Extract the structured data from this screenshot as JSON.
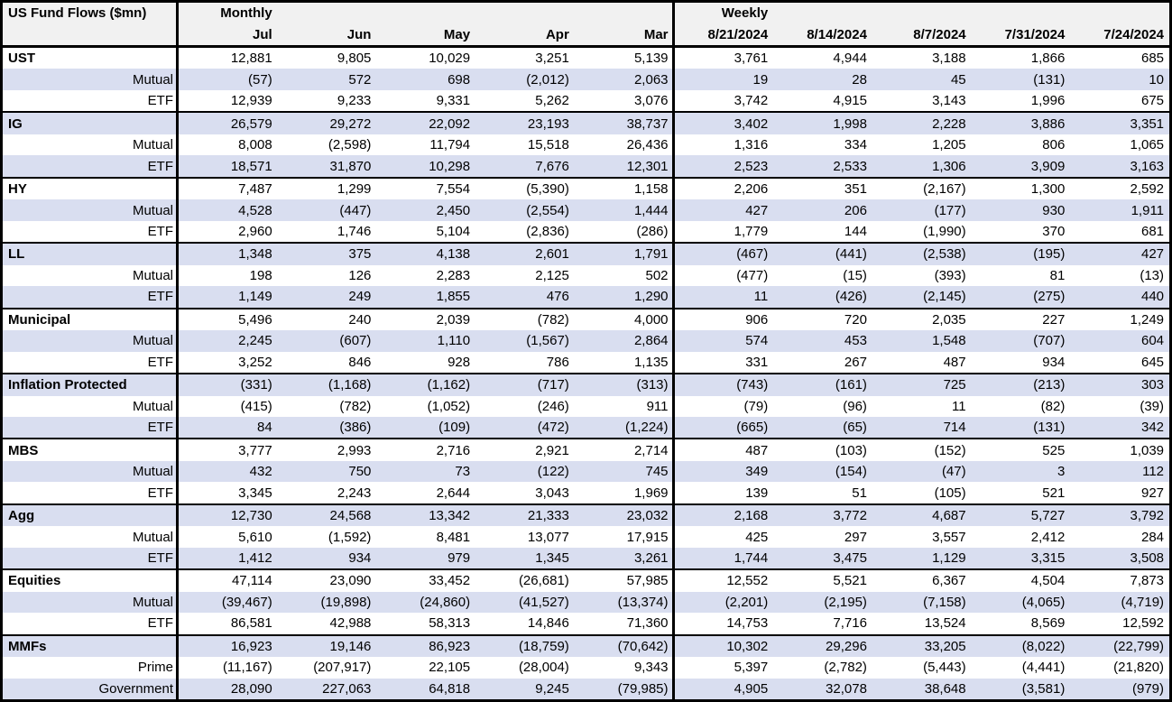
{
  "colors": {
    "row_shade": "#d9def0",
    "header_bg": "#f1f1f1",
    "border": "#000000"
  },
  "chart_data": {
    "type": "table",
    "title": "US Fund Flows ($mn)",
    "sections": [
      {
        "label": "Monthly",
        "columns": [
          "Jul",
          "Jun",
          "May",
          "Apr",
          "Mar"
        ]
      },
      {
        "label": "Weekly",
        "columns": [
          "8/21/2024",
          "8/14/2024",
          "8/7/2024",
          "7/31/2024",
          "7/24/2024"
        ]
      }
    ],
    "groups": [
      {
        "name": "UST",
        "rows": [
          {
            "label": "UST",
            "monthly": [
              "12,881",
              "9,805",
              "10,029",
              "3,251",
              "5,139"
            ],
            "weekly": [
              "3,761",
              "4,944",
              "3,188",
              "1,866",
              "685"
            ]
          },
          {
            "label": "Mutual",
            "monthly": [
              "(57)",
              "572",
              "698",
              "(2,012)",
              "2,063"
            ],
            "weekly": [
              "19",
              "28",
              "45",
              "(131)",
              "10"
            ]
          },
          {
            "label": "ETF",
            "monthly": [
              "12,939",
              "9,233",
              "9,331",
              "5,262",
              "3,076"
            ],
            "weekly": [
              "3,742",
              "4,915",
              "3,143",
              "1,996",
              "675"
            ]
          }
        ]
      },
      {
        "name": "IG",
        "rows": [
          {
            "label": "IG",
            "monthly": [
              "26,579",
              "29,272",
              "22,092",
              "23,193",
              "38,737"
            ],
            "weekly": [
              "3,402",
              "1,998",
              "2,228",
              "3,886",
              "3,351"
            ]
          },
          {
            "label": "Mutual",
            "monthly": [
              "8,008",
              "(2,598)",
              "11,794",
              "15,518",
              "26,436"
            ],
            "weekly": [
              "1,316",
              "334",
              "1,205",
              "806",
              "1,065"
            ]
          },
          {
            "label": "ETF",
            "monthly": [
              "18,571",
              "31,870",
              "10,298",
              "7,676",
              "12,301"
            ],
            "weekly": [
              "2,523",
              "2,533",
              "1,306",
              "3,909",
              "3,163"
            ]
          }
        ]
      },
      {
        "name": "HY",
        "rows": [
          {
            "label": "HY",
            "monthly": [
              "7,487",
              "1,299",
              "7,554",
              "(5,390)",
              "1,158"
            ],
            "weekly": [
              "2,206",
              "351",
              "(2,167)",
              "1,300",
              "2,592"
            ]
          },
          {
            "label": "Mutual",
            "monthly": [
              "4,528",
              "(447)",
              "2,450",
              "(2,554)",
              "1,444"
            ],
            "weekly": [
              "427",
              "206",
              "(177)",
              "930",
              "1,911"
            ]
          },
          {
            "label": "ETF",
            "monthly": [
              "2,960",
              "1,746",
              "5,104",
              "(2,836)",
              "(286)"
            ],
            "weekly": [
              "1,779",
              "144",
              "(1,990)",
              "370",
              "681"
            ]
          }
        ]
      },
      {
        "name": "LL",
        "rows": [
          {
            "label": "LL",
            "monthly": [
              "1,348",
              "375",
              "4,138",
              "2,601",
              "1,791"
            ],
            "weekly": [
              "(467)",
              "(441)",
              "(2,538)",
              "(195)",
              "427"
            ]
          },
          {
            "label": "Mutual",
            "monthly": [
              "198",
              "126",
              "2,283",
              "2,125",
              "502"
            ],
            "weekly": [
              "(477)",
              "(15)",
              "(393)",
              "81",
              "(13)"
            ]
          },
          {
            "label": "ETF",
            "monthly": [
              "1,149",
              "249",
              "1,855",
              "476",
              "1,290"
            ],
            "weekly": [
              "11",
              "(426)",
              "(2,145)",
              "(275)",
              "440"
            ]
          }
        ]
      },
      {
        "name": "Municipal",
        "rows": [
          {
            "label": "Municipal",
            "monthly": [
              "5,496",
              "240",
              "2,039",
              "(782)",
              "4,000"
            ],
            "weekly": [
              "906",
              "720",
              "2,035",
              "227",
              "1,249"
            ]
          },
          {
            "label": "Mutual",
            "monthly": [
              "2,245",
              "(607)",
              "1,110",
              "(1,567)",
              "2,864"
            ],
            "weekly": [
              "574",
              "453",
              "1,548",
              "(707)",
              "604"
            ]
          },
          {
            "label": "ETF",
            "monthly": [
              "3,252",
              "846",
              "928",
              "786",
              "1,135"
            ],
            "weekly": [
              "331",
              "267",
              "487",
              "934",
              "645"
            ]
          }
        ]
      },
      {
        "name": "Inflation Protected",
        "rows": [
          {
            "label": "Inflation Protected",
            "monthly": [
              "(331)",
              "(1,168)",
              "(1,162)",
              "(717)",
              "(313)"
            ],
            "weekly": [
              "(743)",
              "(161)",
              "725",
              "(213)",
              "303"
            ]
          },
          {
            "label": "Mutual",
            "monthly": [
              "(415)",
              "(782)",
              "(1,052)",
              "(246)",
              "911"
            ],
            "weekly": [
              "(79)",
              "(96)",
              "11",
              "(82)",
              "(39)"
            ]
          },
          {
            "label": "ETF",
            "monthly": [
              "84",
              "(386)",
              "(109)",
              "(472)",
              "(1,224)"
            ],
            "weekly": [
              "(665)",
              "(65)",
              "714",
              "(131)",
              "342"
            ]
          }
        ]
      },
      {
        "name": "MBS",
        "rows": [
          {
            "label": "MBS",
            "monthly": [
              "3,777",
              "2,993",
              "2,716",
              "2,921",
              "2,714"
            ],
            "weekly": [
              "487",
              "(103)",
              "(152)",
              "525",
              "1,039"
            ]
          },
          {
            "label": "Mutual",
            "monthly": [
              "432",
              "750",
              "73",
              "(122)",
              "745"
            ],
            "weekly": [
              "349",
              "(154)",
              "(47)",
              "3",
              "112"
            ]
          },
          {
            "label": "ETF",
            "monthly": [
              "3,345",
              "2,243",
              "2,644",
              "3,043",
              "1,969"
            ],
            "weekly": [
              "139",
              "51",
              "(105)",
              "521",
              "927"
            ]
          }
        ]
      },
      {
        "name": "Agg",
        "rows": [
          {
            "label": "Agg",
            "monthly": [
              "12,730",
              "24,568",
              "13,342",
              "21,333",
              "23,032"
            ],
            "weekly": [
              "2,168",
              "3,772",
              "4,687",
              "5,727",
              "3,792"
            ]
          },
          {
            "label": "Mutual",
            "monthly": [
              "5,610",
              "(1,592)",
              "8,481",
              "13,077",
              "17,915"
            ],
            "weekly": [
              "425",
              "297",
              "3,557",
              "2,412",
              "284"
            ]
          },
          {
            "label": "ETF",
            "monthly": [
              "1,412",
              "934",
              "979",
              "1,345",
              "3,261"
            ],
            "weekly": [
              "1,744",
              "3,475",
              "1,129",
              "3,315",
              "3,508"
            ]
          }
        ]
      },
      {
        "name": "Equities",
        "rows": [
          {
            "label": "Equities",
            "monthly": [
              "47,114",
              "23,090",
              "33,452",
              "(26,681)",
              "57,985"
            ],
            "weekly": [
              "12,552",
              "5,521",
              "6,367",
              "4,504",
              "7,873"
            ]
          },
          {
            "label": "Mutual",
            "monthly": [
              "(39,467)",
              "(19,898)",
              "(24,860)",
              "(41,527)",
              "(13,374)"
            ],
            "weekly": [
              "(2,201)",
              "(2,195)",
              "(7,158)",
              "(4,065)",
              "(4,719)"
            ]
          },
          {
            "label": "ETF",
            "monthly": [
              "86,581",
              "42,988",
              "58,313",
              "14,846",
              "71,360"
            ],
            "weekly": [
              "14,753",
              "7,716",
              "13,524",
              "8,569",
              "12,592"
            ]
          }
        ]
      },
      {
        "name": "MMFs",
        "rows": [
          {
            "label": "MMFs",
            "monthly": [
              "16,923",
              "19,146",
              "86,923",
              "(18,759)",
              "(70,642)"
            ],
            "weekly": [
              "10,302",
              "29,296",
              "33,205",
              "(8,022)",
              "(22,799)"
            ]
          },
          {
            "label": "Prime",
            "monthly": [
              "(11,167)",
              "(207,917)",
              "22,105",
              "(28,004)",
              "9,343"
            ],
            "weekly": [
              "5,397",
              "(2,782)",
              "(5,443)",
              "(4,441)",
              "(21,820)"
            ]
          },
          {
            "label": "Government",
            "monthly": [
              "28,090",
              "227,063",
              "64,818",
              "9,245",
              "(79,985)"
            ],
            "weekly": [
              "4,905",
              "32,078",
              "38,648",
              "(3,581)",
              "(979)"
            ]
          }
        ]
      }
    ]
  }
}
